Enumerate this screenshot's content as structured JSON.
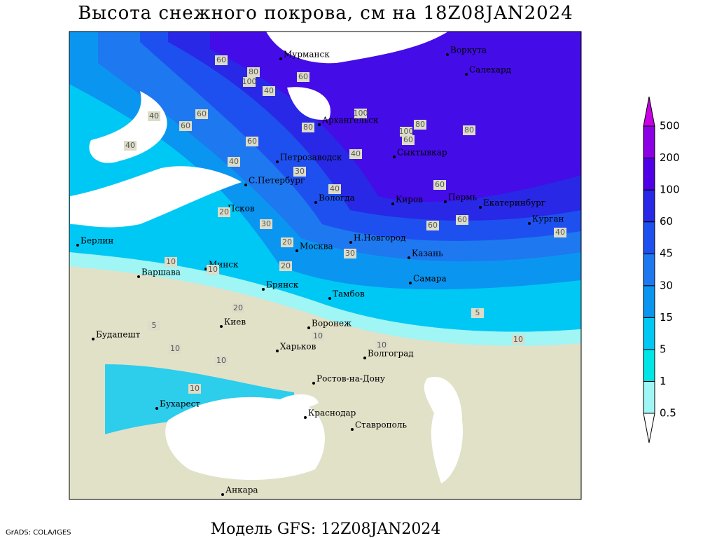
{
  "title": "Высота снежного покрова, см на 18Z08JAN2024",
  "footer": "Модель GFS: 12Z08JAN2024",
  "credit": "GrADS: COLA/IGES",
  "legend": {
    "levels": [
      "0.5",
      "1",
      "5",
      "15",
      "30",
      "45",
      "60",
      "100",
      "200",
      "500"
    ],
    "colors": [
      "#ffffff",
      "#a0f5f5",
      "#00e6e6",
      "#00c8f5",
      "#0a96f0",
      "#1e78f0",
      "#1e50f0",
      "#2828e6",
      "#5000e6",
      "#8c00e6",
      "#c800e6"
    ]
  },
  "cities": [
    "Мурманск",
    "Воркута",
    "Салехард",
    "Архангельск",
    "Петрозаводск",
    "Сыктывкар",
    "С.Петербург",
    "Вологда",
    "Киров",
    "Пермь",
    "Екатеринбург",
    "Курган",
    "Псков",
    "Берлин",
    "Москва",
    "Н.Новгород",
    "Казань",
    "Минск",
    "Варшава",
    "Брянск",
    "Самара",
    "Тамбов",
    "Киев",
    "Воронеж",
    "Будапешт",
    "Харьков",
    "Волгоград",
    "Ростов-на-Дону",
    "Бухарест",
    "Краснодар",
    "Ставрополь",
    "Анкара"
  ],
  "contour_labels": [
    "60",
    "80",
    "100",
    "60",
    "40",
    "60",
    "40",
    "60",
    "100",
    "80",
    "60",
    "40",
    "40",
    "60",
    "80",
    "100",
    "60",
    "80",
    "40",
    "60",
    "60",
    "30",
    "20",
    "20",
    "10",
    "30",
    "40",
    "30",
    "20",
    "10",
    "20",
    "10",
    "10",
    "10",
    "10",
    "5",
    "5",
    "10",
    "10",
    "40"
  ]
}
